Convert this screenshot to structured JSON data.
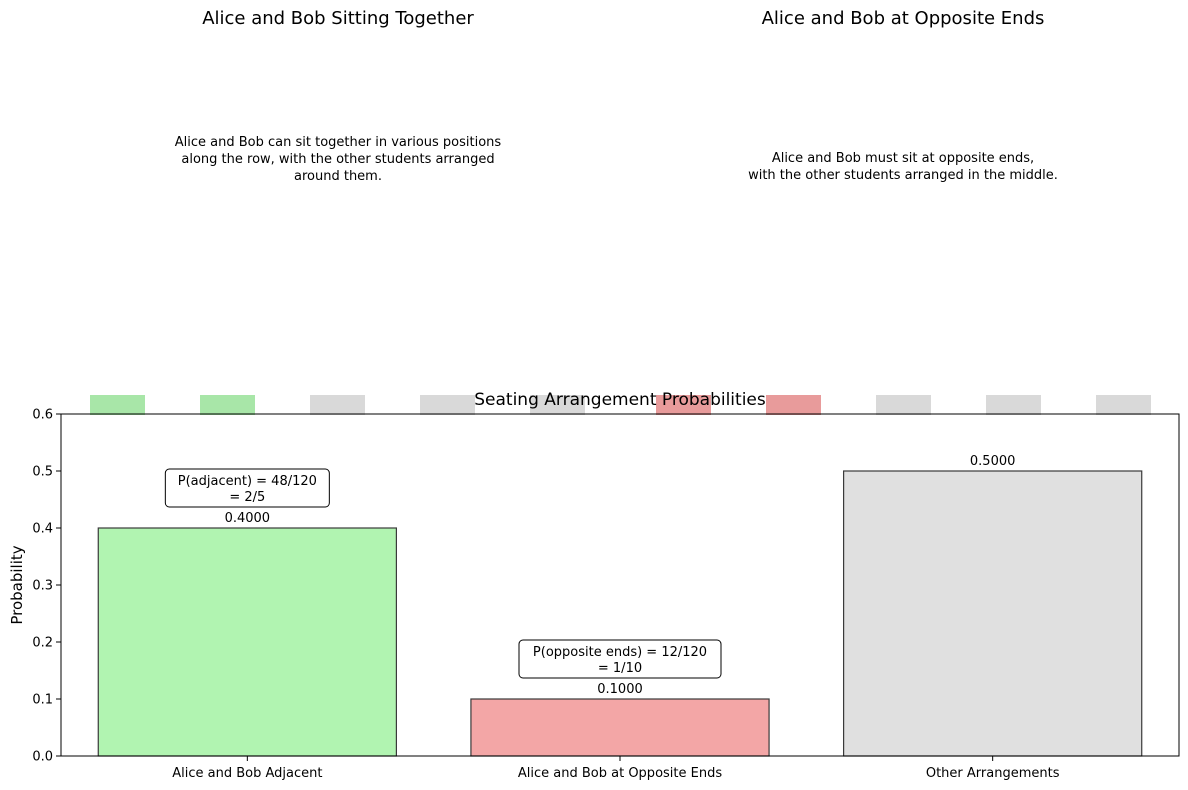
{
  "panels": {
    "left": {
      "title": "Alice and Bob Sitting Together",
      "description": [
        "Alice and Bob can sit together in various positions",
        "along the row, with the other students arranged",
        "around them."
      ]
    },
    "right": {
      "title": "Alice and Bob at Opposite Ends",
      "description": [
        "Alice and Bob must sit at opposite ends,",
        "with the other students arranged in the middle."
      ]
    }
  },
  "seats": {
    "colors": {
      "adjacent": "#a8e6a8",
      "opposite": "#e89b9b",
      "other": "#d9d9d9"
    },
    "left": [
      "adjacent",
      "adjacent",
      "other",
      "other",
      "other"
    ],
    "right": [
      "opposite",
      "opposite",
      "other",
      "other",
      "other"
    ]
  },
  "chart_data": {
    "type": "bar",
    "title": "Seating Arrangement Probabilities",
    "xlabel": "",
    "ylabel": "Probability",
    "categories": [
      "Alice and Bob Adjacent",
      "Alice and Bob at Opposite Ends",
      "Other Arrangements"
    ],
    "values": [
      0.4,
      0.1,
      0.5
    ],
    "value_labels": [
      "0.4000",
      "0.1000",
      "0.5000"
    ],
    "colors": [
      "#b1f4b1",
      "#f3a6a6",
      "#e0e0e0"
    ],
    "ylim": [
      0,
      0.6
    ],
    "yticks": [
      "0.0",
      "0.1",
      "0.2",
      "0.3",
      "0.4",
      "0.5",
      "0.6"
    ],
    "annotations": [
      {
        "category": "Alice and Bob Adjacent",
        "lines": [
          "P(adjacent) = 48/120",
          "= 2/5"
        ]
      },
      {
        "category": "Alice and Bob at Opposite Ends",
        "lines": [
          "P(opposite ends) = 12/120",
          "= 1/10"
        ]
      }
    ],
    "grid": false
  }
}
